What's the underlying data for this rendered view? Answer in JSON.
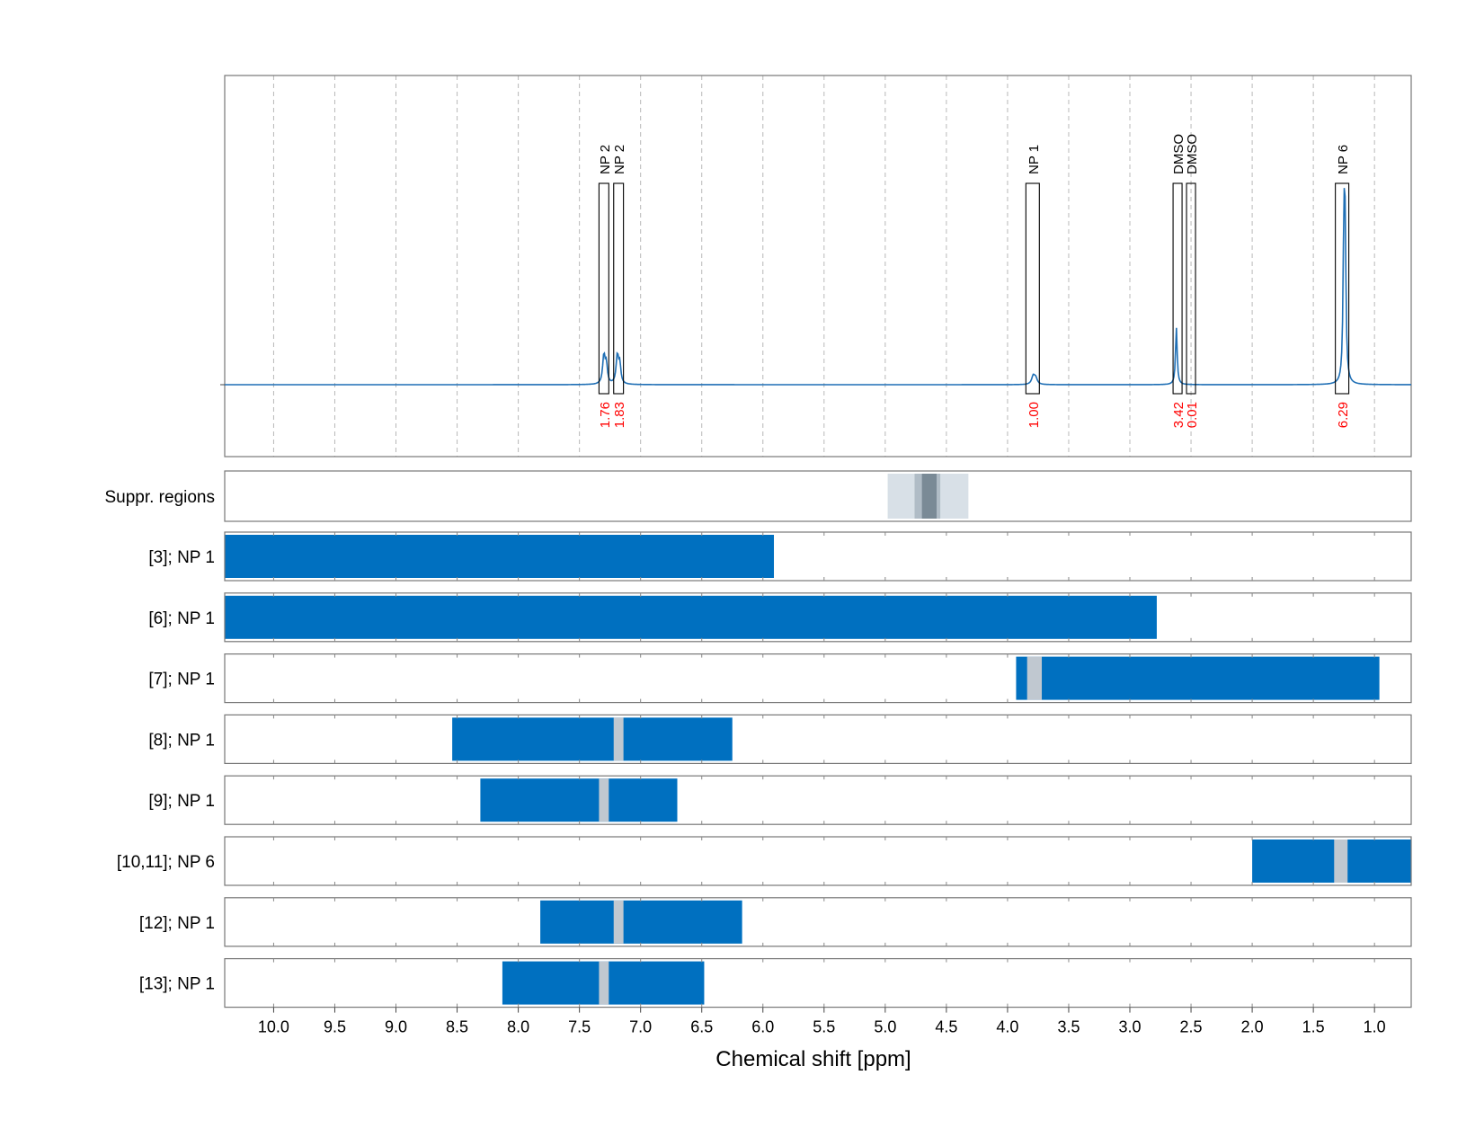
{
  "chart_data": {
    "type": "line",
    "xlabel": "Chemical shift [ppm]",
    "xlim": [
      10.4,
      0.7
    ],
    "x_ticks": [
      "10.0",
      "9.5",
      "9.0",
      "8.5",
      "8.0",
      "7.5",
      "7.0",
      "6.5",
      "6.0",
      "5.5",
      "5.0",
      "4.5",
      "4.0",
      "3.5",
      "3.0",
      "2.5",
      "2.0",
      "1.5",
      "1.0"
    ],
    "x_tick_values": [
      10.0,
      9.5,
      9.0,
      8.5,
      8.0,
      7.5,
      7.0,
      6.5,
      6.0,
      5.5,
      5.0,
      4.5,
      4.0,
      3.5,
      3.0,
      2.5,
      2.0,
      1.5,
      1.0
    ],
    "grid": true,
    "colors": {
      "spectrum": "#1f6fb5",
      "bar": "#0070c0",
      "gap": "#c0c8d0",
      "integral": "#ff0000",
      "suppr_light": "#d8e0e7",
      "suppr_mid": "#b0bcc6",
      "suppr_dark": "#7a8a96"
    },
    "spectrum_peaks": [
      {
        "x": 7.3,
        "height": 0.14,
        "width": 0.012
      },
      {
        "x": 7.28,
        "height": 0.09,
        "width": 0.01
      },
      {
        "x": 7.19,
        "height": 0.14,
        "width": 0.012
      },
      {
        "x": 7.17,
        "height": 0.09,
        "width": 0.01
      },
      {
        "x": 3.79,
        "height": 0.04,
        "width": 0.015
      },
      {
        "x": 3.77,
        "height": 0.03,
        "width": 0.015
      },
      {
        "x": 2.62,
        "height": 0.28,
        "width": 0.008
      },
      {
        "x": 1.25,
        "height": 0.68,
        "width": 0.008
      },
      {
        "x": 1.24,
        "height": 0.64,
        "width": 0.008
      }
    ],
    "annotations": [
      {
        "label": "NP 2",
        "integral": "1.76",
        "from": 7.34,
        "to": 7.26
      },
      {
        "label": "NP 2",
        "integral": "1.83",
        "from": 7.22,
        "to": 7.14
      },
      {
        "label": "NP 1",
        "integral": "1.00",
        "from": 3.85,
        "to": 3.74
      },
      {
        "label": "DMSO",
        "integral": "3.42",
        "from": 2.64,
        "to": 2.58
      },
      {
        "label": "DMSO",
        "integral": "0.01",
        "from": 2.53,
        "to": 2.47
      },
      {
        "label": "NP 6",
        "integral": "6.29",
        "from": 1.32,
        "to": 1.21
      }
    ],
    "suppression": {
      "label": "Suppr. regions",
      "bands": [
        {
          "from": 4.98,
          "to": 4.32,
          "tone": "light"
        },
        {
          "from": 4.76,
          "to": 4.55,
          "tone": "mid"
        },
        {
          "from": 4.7,
          "to": 4.58,
          "tone": "dark"
        }
      ]
    },
    "rows": [
      {
        "label": "[3]; NP 1",
        "segments": [
          [
            10.4,
            5.91
          ]
        ],
        "gaps": []
      },
      {
        "label": "[6]; NP 1",
        "segments": [
          [
            10.4,
            2.78
          ]
        ],
        "gaps": []
      },
      {
        "label": "[7]; NP 1",
        "segments": [
          [
            3.93,
            0.96
          ]
        ],
        "gaps": [
          [
            3.84,
            3.72
          ]
        ]
      },
      {
        "label": "[8]; NP 1",
        "segments": [
          [
            8.54,
            6.25
          ]
        ],
        "gaps": [
          [
            7.22,
            7.14
          ]
        ]
      },
      {
        "label": "[9]; NP 1",
        "segments": [
          [
            8.31,
            6.7
          ]
        ],
        "gaps": [
          [
            7.34,
            7.26
          ]
        ]
      },
      {
        "label": "[10,11]; NP 6",
        "segments": [
          [
            2.0,
            0.7
          ]
        ],
        "gaps": [
          [
            1.33,
            1.22
          ]
        ]
      },
      {
        "label": "[12]; NP 1",
        "segments": [
          [
            7.82,
            6.17
          ]
        ],
        "gaps": [
          [
            7.22,
            7.14
          ]
        ]
      },
      {
        "label": "[13]; NP 1",
        "segments": [
          [
            8.13,
            6.48
          ]
        ],
        "gaps": [
          [
            7.34,
            7.26
          ]
        ]
      }
    ]
  }
}
